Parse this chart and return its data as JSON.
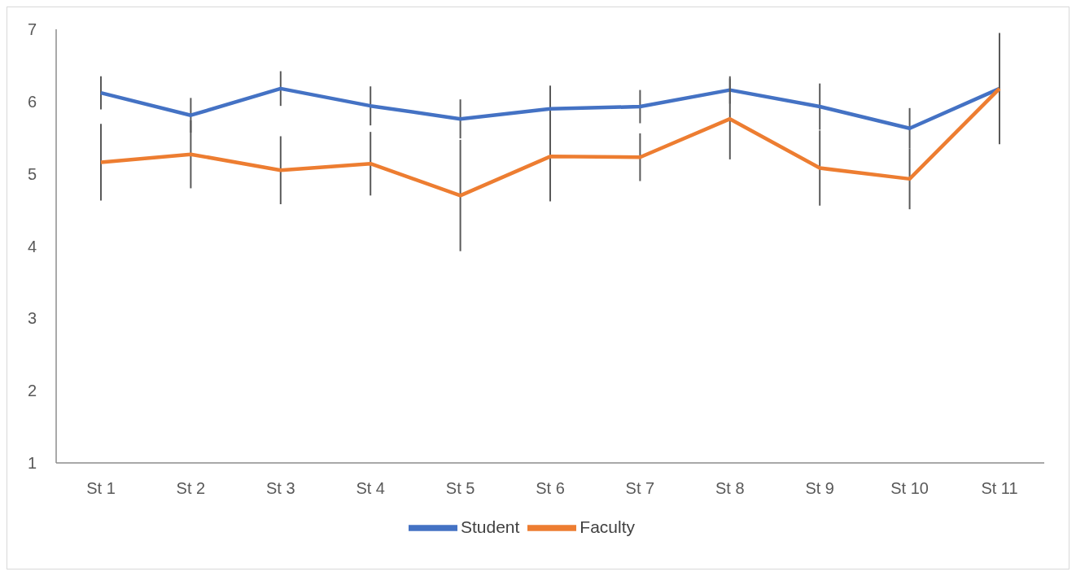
{
  "chart_data": {
    "type": "line",
    "categories": [
      "St 1",
      "St 2",
      "St 3",
      "St 4",
      "St 5",
      "St 6",
      "St 7",
      "St 8",
      "St 9",
      "St 10",
      "St 11"
    ],
    "series": [
      {
        "name": "Student",
        "color": "#4472c4",
        "values": [
          6.12,
          5.81,
          6.18,
          5.94,
          5.76,
          5.9,
          5.93,
          6.16,
          5.93,
          5.63,
          6.18
        ],
        "errors": [
          0.23,
          0.24,
          0.24,
          0.27,
          0.27,
          0.32,
          0.23,
          0.19,
          0.32,
          0.28,
          0.27
        ]
      },
      {
        "name": "Faculty",
        "color": "#ed7d31",
        "values": [
          5.16,
          5.27,
          5.05,
          5.14,
          4.7,
          5.24,
          5.23,
          5.76,
          5.08,
          4.93,
          6.18
        ],
        "errors": [
          0.53,
          0.47,
          0.47,
          0.44,
          0.77,
          0.62,
          0.33,
          0.56,
          0.52,
          0.42,
          0.77
        ]
      }
    ],
    "ylim": [
      1,
      7
    ],
    "yticks": [
      1,
      2,
      3,
      4,
      5,
      6,
      7
    ],
    "grid": false,
    "legend": "bottom",
    "marker": "none",
    "line_style": "solid"
  }
}
